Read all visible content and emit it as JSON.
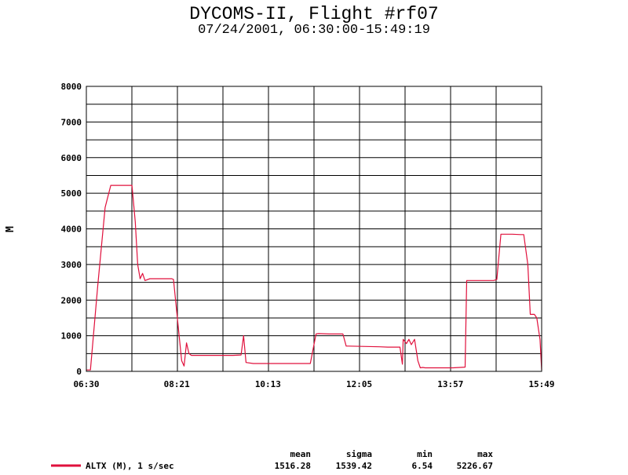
{
  "title": "DYCOMS-II, Flight #rf07",
  "subtitle": "07/24/2001, 06:30:00-15:49:19",
  "chart_data": {
    "type": "line",
    "ylabel": "M",
    "ylim": [
      0,
      8000
    ],
    "yticks": [
      0,
      1000,
      2000,
      3000,
      4000,
      5000,
      6000,
      7000,
      8000
    ],
    "xlim": [
      "06:30",
      "15:49"
    ],
    "xticks": [
      "06:30",
      "08:21",
      "10:13",
      "12:05",
      "13:57",
      "15:49"
    ],
    "grid": true,
    "series": [
      {
        "name": "ALTX (M), 1 s/sec",
        "color": "#e0103c",
        "x": [
          "06:30",
          "06:35",
          "06:44",
          "06:53",
          "07:00",
          "07:22",
          "07:26",
          "07:30",
          "07:33",
          "07:36",
          "07:39",
          "07:42",
          "07:48",
          "08:15",
          "08:17",
          "08:27",
          "08:30",
          "08:33",
          "08:36",
          "08:39",
          "08:45",
          "09:30",
          "09:40",
          "09:43",
          "09:46",
          "09:55",
          "10:40",
          "11:05",
          "11:12",
          "11:15",
          "11:28",
          "11:45",
          "11:49",
          "11:52",
          "12:30",
          "12:40",
          "12:55",
          "12:58",
          "12:59",
          "13:03",
          "13:06",
          "13:09",
          "13:13",
          "13:17",
          "13:20",
          "13:23",
          "13:26",
          "13:30",
          "14:00",
          "14:15",
          "14:17",
          "14:21",
          "14:50",
          "14:54",
          "14:59",
          "15:13",
          "15:23",
          "15:27",
          "15:32",
          "15:35",
          "15:40",
          "15:43",
          "15:47",
          "15:49"
        ],
        "values": [
          40,
          40,
          2400,
          4600,
          5220,
          5220,
          5220,
          4200,
          3000,
          2600,
          2750,
          2550,
          2600,
          2600,
          2580,
          300,
          150,
          800,
          500,
          450,
          450,
          450,
          460,
          1000,
          250,
          220,
          220,
          220,
          1050,
          1060,
          1050,
          1050,
          710,
          710,
          690,
          680,
          680,
          200,
          900,
          780,
          900,
          750,
          900,
          300,
          100,
          110,
          100,
          100,
          100,
          120,
          2550,
          2550,
          2550,
          2580,
          3850,
          3850,
          3840,
          3840,
          3000,
          1600,
          1600,
          1500,
          900,
          40
        ]
      }
    ],
    "stats": {
      "headers": [
        "mean",
        "sigma",
        "min",
        "max"
      ],
      "values": [
        "1516.28",
        "1539.42",
        "6.54",
        "5226.67"
      ]
    }
  }
}
